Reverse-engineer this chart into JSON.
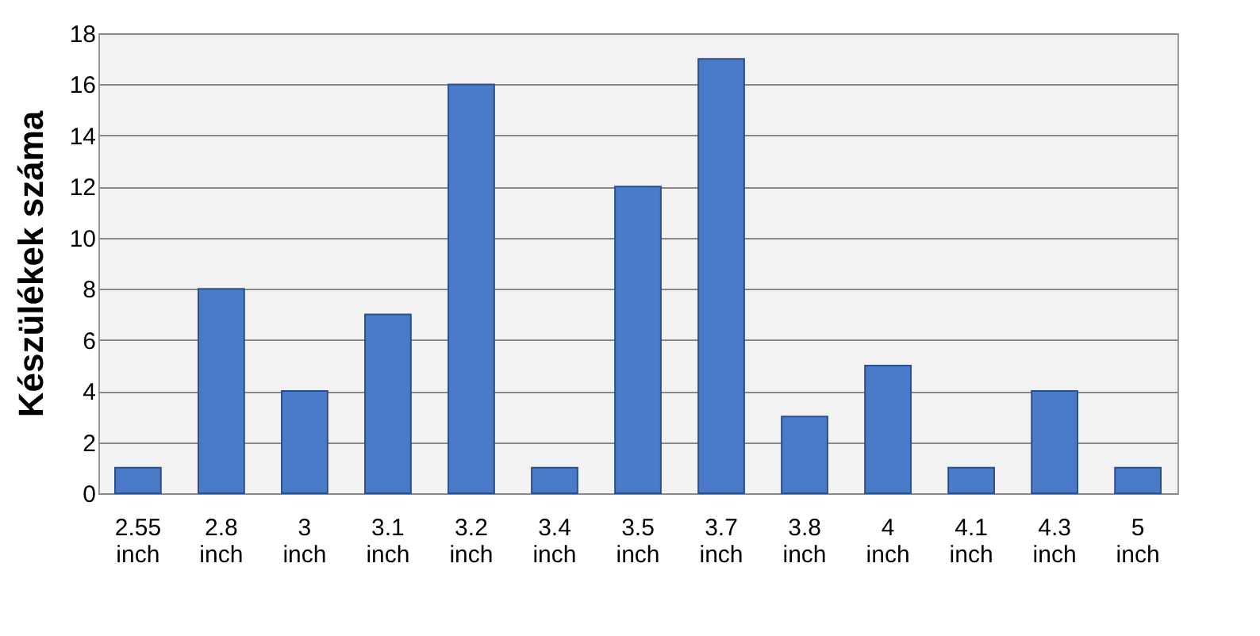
{
  "chart_data": {
    "type": "bar",
    "ylabel": "Készülékek száma",
    "categories": [
      "2.55 inch",
      "2.8 inch",
      "3 inch",
      "3.1 inch",
      "3.2 inch",
      "3.4 inch",
      "3.5 inch",
      "3.7 inch",
      "3.8 inch",
      "4 inch",
      "4.1 inch",
      "4.3 inch",
      "5 inch"
    ],
    "values": [
      1,
      8,
      4,
      7,
      16,
      1,
      12,
      17,
      3,
      5,
      1,
      4,
      1
    ],
    "color": "#4a7bc8",
    "ylim": [
      0,
      18
    ],
    "yticks": [
      0,
      2,
      4,
      6,
      8,
      10,
      12,
      14,
      16,
      18
    ],
    "grid": "y"
  }
}
